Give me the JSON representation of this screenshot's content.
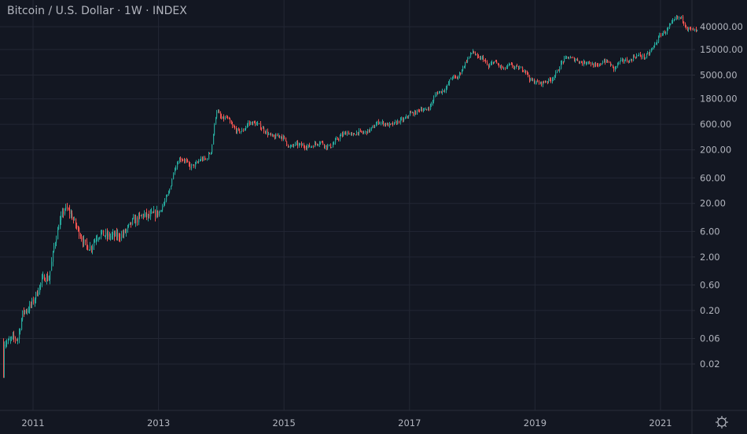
{
  "header": {
    "title": "Bitcoin / U.S. Dollar · 1W · INDEX"
  },
  "colors": {
    "background": "#131722",
    "up": "#26a69a",
    "down": "#ef5350",
    "grid": "#232734",
    "text": "#b2b5be"
  },
  "icons": {
    "settings": "gear-icon"
  },
  "chart_data": {
    "type": "candlestick",
    "title": "Bitcoin / U.S. Dollar · 1W · INDEX",
    "interval": "1W",
    "y_scale": "log",
    "ylim": [
      0.012,
      70000
    ],
    "grid": true,
    "y_ticks": [
      "40000.00",
      "15000.00",
      "5000.00",
      "1800.00",
      "600.00",
      "200.00",
      "60.00",
      "20.00",
      "6.00",
      "2.00",
      "0.60",
      "0.20",
      "0.06",
      "0.02"
    ],
    "y_tick_values": [
      40000,
      15000,
      5000,
      1800,
      600,
      200,
      60,
      20,
      6,
      2,
      0.6,
      0.2,
      0.06,
      0.02
    ],
    "x_ticks": [
      "2011",
      "2013",
      "2015",
      "2017",
      "2019",
      "2021"
    ],
    "x_tick_values": [
      2011,
      2013,
      2015,
      2017,
      2019,
      2021
    ],
    "monthly_close_start": "2010-07",
    "monthly_close": [
      0.05,
      0.06,
      0.06,
      0.19,
      0.21,
      0.3,
      0.52,
      0.86,
      0.78,
      3.5,
      8.7,
      16.1,
      13.4,
      8.2,
      5.1,
      3.2,
      3.0,
      4.7,
      5.5,
      4.9,
      4.9,
      5.0,
      5.1,
      6.7,
      9.3,
      10.2,
      12.4,
      11.2,
      12.6,
      13.5,
      20.4,
      33.4,
      93,
      139,
      128,
      97,
      106,
      135,
      133,
      198,
      1130,
      757,
      800,
      550,
      450,
      447,
      628,
      640,
      585,
      480,
      388,
      338,
      378,
      320,
      217,
      254,
      244,
      236,
      230,
      263,
      284,
      230,
      237,
      314,
      377,
      430,
      368,
      437,
      416,
      448,
      531,
      673,
      624,
      575,
      610,
      701,
      745,
      964,
      970,
      1190,
      1080,
      1350,
      2300,
      2480,
      2875,
      4700,
      4340,
      6470,
      9950,
      14000,
      10200,
      10400,
      6900,
      9240,
      7500,
      6400,
      7730,
      7030,
      6630,
      6320,
      4020,
      3740,
      3460,
      3850,
      4100,
      5350,
      8570,
      10800,
      10100,
      9600,
      8300,
      9150,
      7570,
      7200,
      9350,
      8600,
      6440,
      8660,
      9460,
      9140,
      11350,
      11650,
      10780,
      13800,
      19700,
      29000,
      33100,
      45200,
      58900,
      57700,
      37300,
      35000,
      33000
    ]
  }
}
